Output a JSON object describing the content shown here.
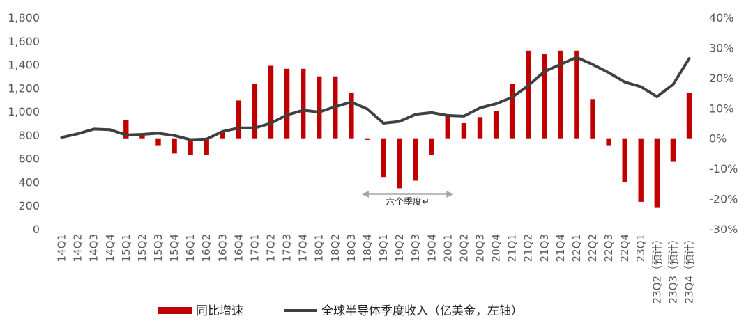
{
  "chart_data": {
    "type": "bar+line",
    "categories": [
      "14Q1",
      "14Q2",
      "14Q3",
      "14Q4",
      "15Q1",
      "15Q2",
      "15Q3",
      "15Q4",
      "16Q1",
      "16Q2",
      "16Q3",
      "16Q4",
      "17Q1",
      "17Q2",
      "17Q3",
      "17Q4",
      "18Q1",
      "18Q2",
      "18Q3",
      "18Q4",
      "19Q1",
      "19Q2",
      "19Q3",
      "19Q4",
      "20Q1",
      "20Q2",
      "20Q3",
      "20Q4",
      "21Q1",
      "21Q2",
      "21Q3",
      "21Q4",
      "22Q1",
      "22Q2",
      "22Q3",
      "22Q4",
      "23Q1",
      "23Q2（预计）",
      "23Q3（预计）",
      "23Q4（预计）"
    ],
    "series": [
      {
        "name": "同比增速",
        "type": "bar",
        "axis": "right",
        "color": "#c00000",
        "values": [
          0,
          0,
          0,
          0,
          6,
          1,
          -2.5,
          -5,
          -5.5,
          -5.5,
          2,
          12.5,
          18,
          24,
          23,
          23,
          20.5,
          20.5,
          15,
          -0.5,
          -13,
          -16.5,
          -14,
          -5.5,
          8,
          5,
          7,
          9,
          18,
          29,
          28,
          29,
          29,
          13,
          -2.5,
          -14.5,
          -21,
          -23,
          -7.8,
          15
        ]
      },
      {
        "name": "全球半导体季度收入（亿美金，左轴）",
        "type": "line",
        "axis": "left",
        "color": "#404040",
        "values": [
          780,
          810,
          850,
          845,
          800,
          805,
          815,
          795,
          760,
          765,
          830,
          860,
          860,
          900,
          970,
          1010,
          995,
          1040,
          1080,
          1020,
          900,
          915,
          975,
          990,
          965,
          960,
          1030,
          1065,
          1120,
          1220,
          1340,
          1400,
          1460,
          1400,
          1330,
          1250,
          1210,
          1125,
          1230,
          1450
        ]
      }
    ],
    "left_axis": {
      "ticks": [
        "0",
        "200",
        "400",
        "600",
        "800",
        "1,000",
        "1,200",
        "1,400",
        "1,600",
        "1,800"
      ],
      "ylim": [
        0,
        1800
      ]
    },
    "right_axis": {
      "ticks": [
        "-30%",
        "-20%",
        "-10%",
        "0%",
        "10%",
        "20%",
        "30%",
        "40%"
      ],
      "ylim": [
        -30,
        40
      ]
    },
    "annotation": {
      "text": "六个季度↵",
      "from": "18Q4",
      "to": "20Q1"
    },
    "legend": {
      "bar_label": "同比增速",
      "line_label": "全球半导体季度收入（亿美金，左轴）",
      "position": "bottom"
    },
    "grid": false
  }
}
